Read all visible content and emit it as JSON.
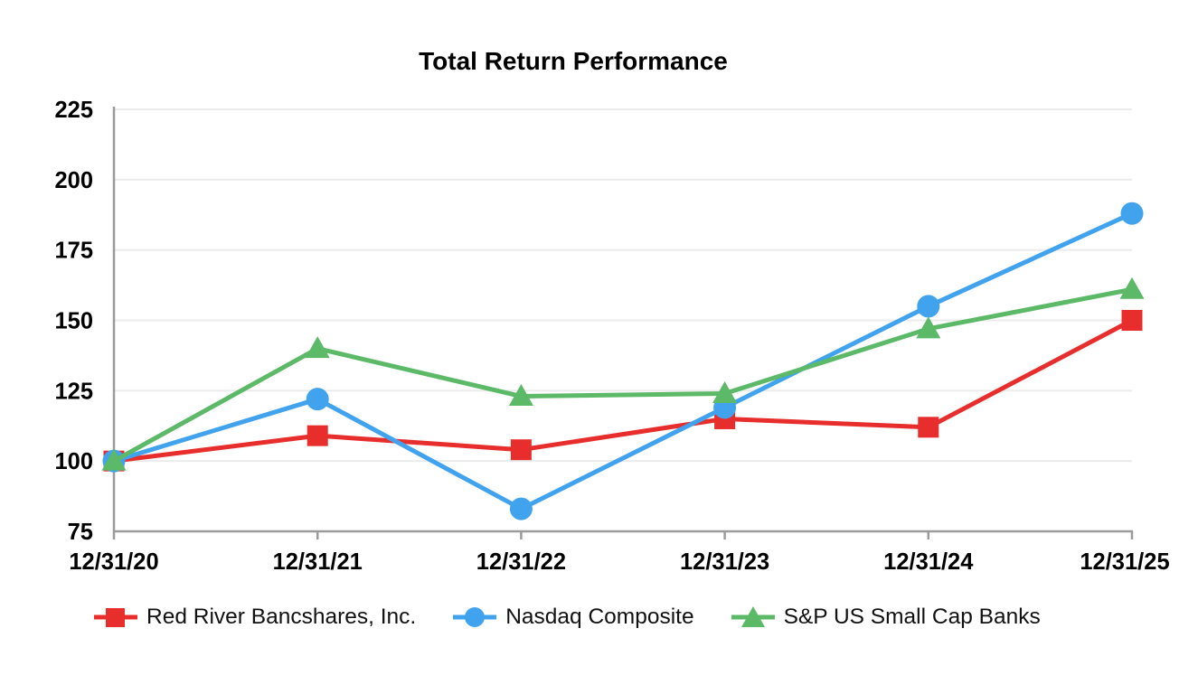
{
  "chart_data": {
    "type": "line",
    "title": "Total Return Performance",
    "categories": [
      "12/31/20",
      "12/31/21",
      "12/31/22",
      "12/31/23",
      "12/31/24",
      "12/31/25"
    ],
    "series": [
      {
        "name": "Red River Bancshares, Inc.",
        "marker": "square",
        "color": "#e82e2c",
        "values": [
          100,
          109,
          104,
          115,
          112,
          150
        ]
      },
      {
        "name": "Nasdaq Composite",
        "marker": "circle",
        "color": "#41a3ee",
        "values": [
          100,
          122,
          83,
          119,
          155,
          188
        ]
      },
      {
        "name": "S&P US Small Cap Banks",
        "marker": "triangle",
        "color": "#5bb968",
        "values": [
          100,
          140,
          123,
          124,
          147,
          161
        ]
      }
    ],
    "ylim": [
      75,
      225
    ],
    "yticks": [
      75,
      100,
      125,
      150,
      175,
      200,
      225
    ],
    "grid": true,
    "legend_position": "bottom",
    "axis_color": "#9b9b9b",
    "gridline_color": "#ebebeb",
    "tick_label_color": "#000000"
  }
}
